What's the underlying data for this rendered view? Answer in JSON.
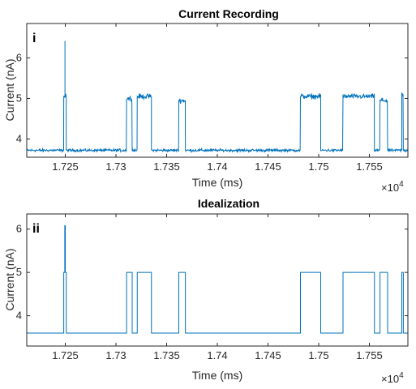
{
  "chart_data": [
    {
      "type": "line",
      "title": "Current Recording",
      "panel_tag": "i",
      "xlabel": "Time (ms)",
      "ylabel": "Current (nA)",
      "x_multiplier": "×10",
      "x_exponent": "4",
      "xlim": [
        1.7212,
        1.7588
      ],
      "ylim": [
        3.55,
        6.85
      ],
      "xticks": [
        1.725,
        1.73,
        1.735,
        1.74,
        1.745,
        1.75,
        1.755
      ],
      "xtick_labels": [
        "1.725",
        "1.73",
        "1.735",
        "1.74",
        "1.745",
        "1.75",
        "1.755"
      ],
      "yticks": [
        4,
        5,
        6
      ],
      "ytick_labels": [
        "4",
        "5",
        "6"
      ],
      "baseline": 3.72,
      "noise": 0.05,
      "segments": [
        {
          "x": [
            1.7212,
            1.72485
          ],
          "level": 3.72
        },
        {
          "x": [
            1.72485,
            1.7251
          ],
          "level": 5.05,
          "spike": [
            1.72497,
            6.42
          ]
        },
        {
          "x": [
            1.7251,
            1.73105
          ],
          "level": 3.72
        },
        {
          "x": [
            1.73105,
            1.7316
          ],
          "level": 5.0
        },
        {
          "x": [
            1.7316,
            1.7321
          ],
          "level": 3.72
        },
        {
          "x": [
            1.7321,
            1.7335
          ],
          "level": 5.05
        },
        {
          "x": [
            1.7335,
            1.7362
          ],
          "level": 3.72
        },
        {
          "x": [
            1.7362,
            1.73685
          ],
          "level": 4.95
        },
        {
          "x": [
            1.73685,
            1.7482
          ],
          "level": 3.72
        },
        {
          "x": [
            1.7482,
            1.7502
          ],
          "level": 5.05
        },
        {
          "x": [
            1.7502,
            1.7524
          ],
          "level": 3.72
        },
        {
          "x": [
            1.7524,
            1.7555
          ],
          "level": 5.05
        },
        {
          "x": [
            1.7555,
            1.75605
          ],
          "level": 3.72
        },
        {
          "x": [
            1.75605,
            1.7568
          ],
          "level": 4.95
        },
        {
          "x": [
            1.7568,
            1.7582
          ],
          "level": 3.72
        },
        {
          "x": [
            1.7582,
            1.75835
          ],
          "level": 5.1
        },
        {
          "x": [
            1.75835,
            1.7588
          ],
          "level": 3.72
        }
      ],
      "line_color": "#0072BD"
    },
    {
      "type": "line",
      "title": "Idealization",
      "panel_tag": "ii",
      "xlabel": "Time (ms)",
      "ylabel": "Current (nA)",
      "x_multiplier": "×10",
      "x_exponent": "4",
      "xlim": [
        1.7212,
        1.7588
      ],
      "ylim": [
        3.3,
        6.35
      ],
      "xticks": [
        1.725,
        1.73,
        1.735,
        1.74,
        1.745,
        1.75,
        1.755
      ],
      "xtick_labels": [
        "1.725",
        "1.73",
        "1.735",
        "1.74",
        "1.745",
        "1.75",
        "1.755"
      ],
      "yticks": [
        4,
        5,
        6
      ],
      "ytick_labels": [
        "4",
        "5",
        "6"
      ],
      "steps": [
        [
          1.7212,
          3.6
        ],
        [
          1.72485,
          3.6
        ],
        [
          1.72485,
          5.0
        ],
        [
          1.72495,
          5.0
        ],
        [
          1.72495,
          6.08
        ],
        [
          1.725,
          6.08
        ],
        [
          1.725,
          5.0
        ],
        [
          1.7251,
          5.0
        ],
        [
          1.7251,
          3.6
        ],
        [
          1.73105,
          3.6
        ],
        [
          1.73105,
          5.0
        ],
        [
          1.7316,
          5.0
        ],
        [
          1.7316,
          3.6
        ],
        [
          1.7321,
          3.6
        ],
        [
          1.7321,
          5.0
        ],
        [
          1.7335,
          5.0
        ],
        [
          1.7335,
          3.6
        ],
        [
          1.7362,
          3.6
        ],
        [
          1.7362,
          5.0
        ],
        [
          1.73685,
          5.0
        ],
        [
          1.73685,
          3.6
        ],
        [
          1.7482,
          3.6
        ],
        [
          1.7482,
          5.0
        ],
        [
          1.7502,
          5.0
        ],
        [
          1.7502,
          3.6
        ],
        [
          1.7524,
          3.6
        ],
        [
          1.7524,
          5.0
        ],
        [
          1.7555,
          5.0
        ],
        [
          1.7555,
          3.6
        ],
        [
          1.75605,
          3.6
        ],
        [
          1.75605,
          5.0
        ],
        [
          1.7568,
          5.0
        ],
        [
          1.7568,
          3.6
        ],
        [
          1.7582,
          3.6
        ],
        [
          1.7582,
          5.0
        ],
        [
          1.75835,
          5.0
        ],
        [
          1.75835,
          3.6
        ],
        [
          1.7588,
          3.6
        ]
      ],
      "line_color": "#0072BD"
    }
  ]
}
